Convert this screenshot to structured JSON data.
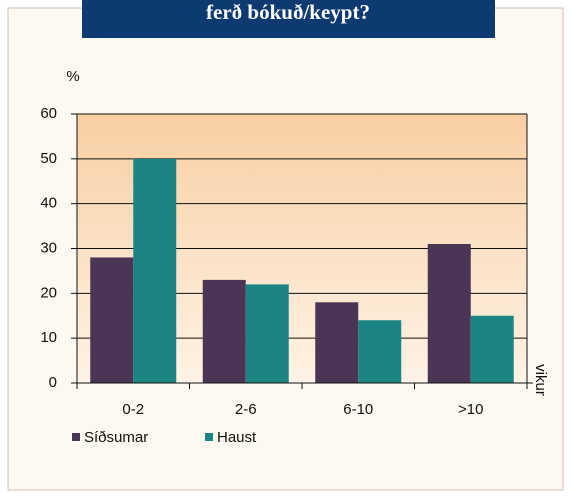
{
  "chart_data": {
    "type": "bar",
    "title": "ferð bókuð/keypt?",
    "y_label": "%",
    "x_label": "vikur",
    "categories": [
      "0-2",
      "2-6",
      "6-10",
      ">10"
    ],
    "series": [
      {
        "name": "Síðsumar",
        "color": "#4b3554",
        "values": [
          28,
          23,
          18,
          31
        ]
      },
      {
        "name": "Haust",
        "color": "#1c8584",
        "values": [
          50,
          22,
          14,
          15
        ]
      }
    ],
    "ylim": [
      0,
      60
    ],
    "yticks": [
      0,
      10,
      20,
      30,
      40,
      50,
      60
    ],
    "grid": true
  }
}
